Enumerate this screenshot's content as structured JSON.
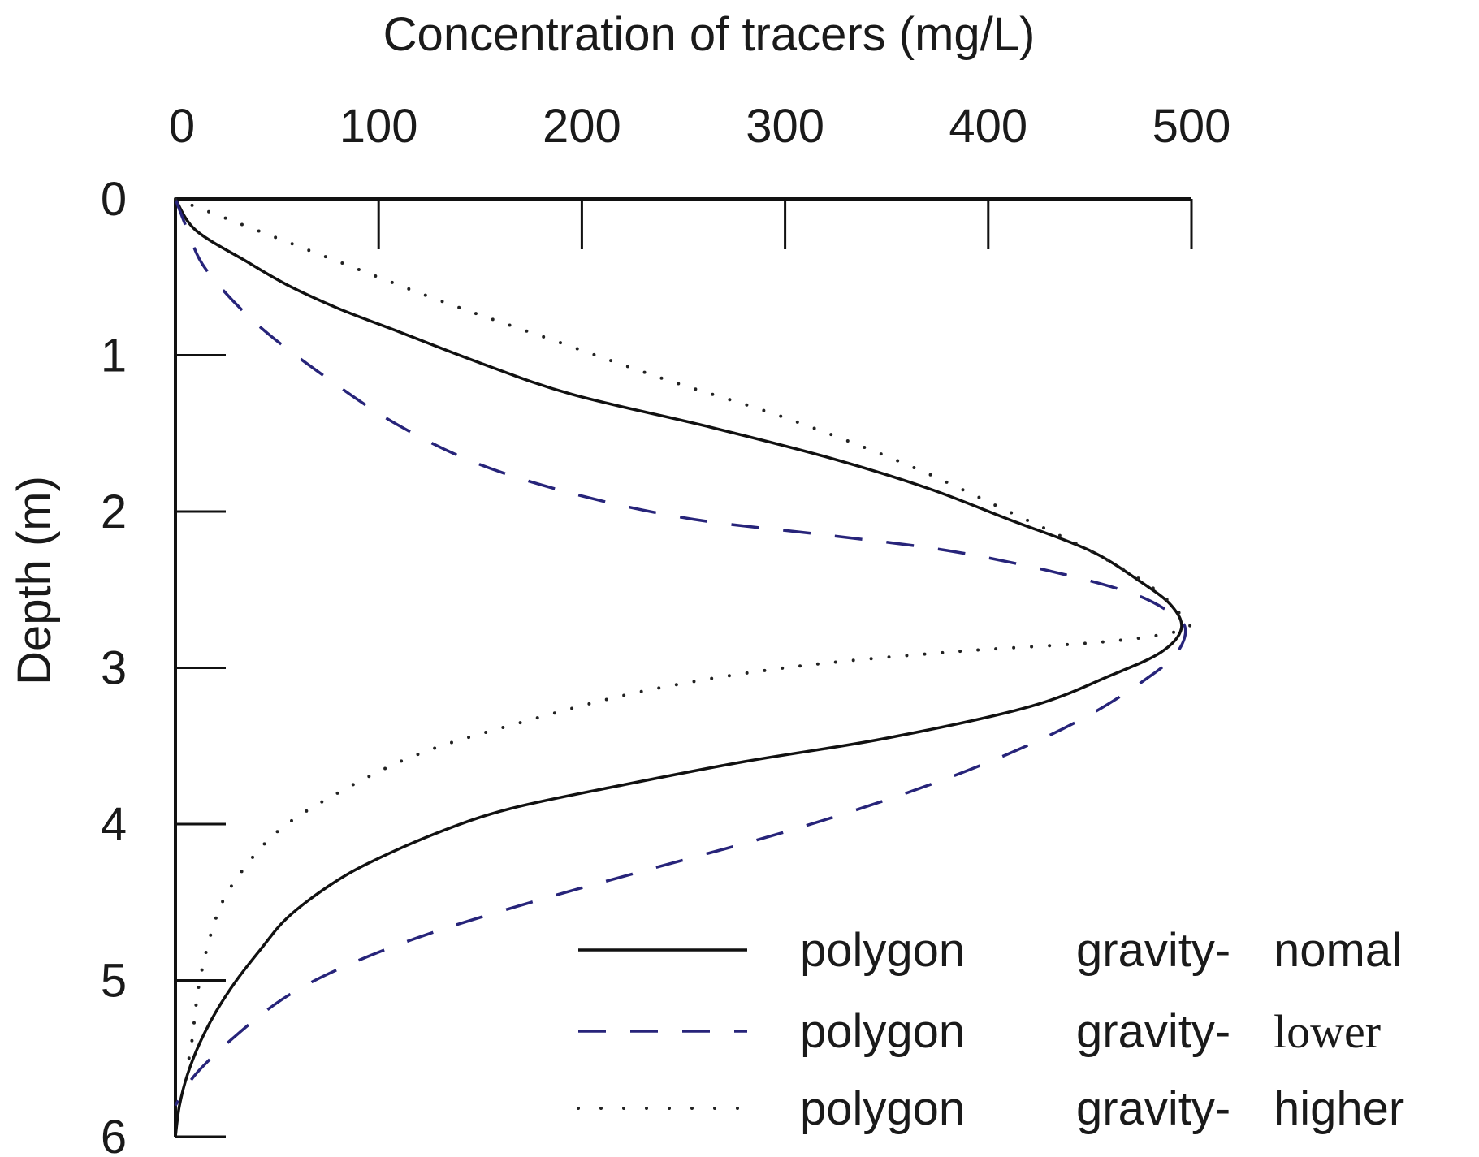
{
  "chart_data": {
    "type": "line",
    "xlabel": "Concentration of tracers (mg/L)",
    "ylabel": "Depth (m)",
    "x_axis_position": "top",
    "y_axis_inverted": true,
    "xlim": [
      0,
      500
    ],
    "ylim": [
      0,
      6
    ],
    "x_ticks": [
      "0",
      "100",
      "200",
      "300",
      "400",
      "500"
    ],
    "y_ticks": [
      "0",
      "1",
      "2",
      "3",
      "4",
      "5",
      "6"
    ],
    "grid": false,
    "legend_position": "bottom-right",
    "series": [
      {
        "name": "polygon gravity-nomal",
        "legend_parts": [
          "polygon",
          "gravity-",
          "nomal"
        ],
        "style": "solid",
        "color": "#111111",
        "points": [
          [
            0,
            0
          ],
          [
            10,
            0.2
          ],
          [
            35,
            0.4
          ],
          [
            55,
            0.55
          ],
          [
            80,
            0.7
          ],
          [
            110,
            0.85
          ],
          [
            150,
            1.05
          ],
          [
            195,
            1.25
          ],
          [
            260,
            1.45
          ],
          [
            320,
            1.65
          ],
          [
            370,
            1.85
          ],
          [
            410,
            2.05
          ],
          [
            450,
            2.25
          ],
          [
            475,
            2.45
          ],
          [
            490,
            2.6
          ],
          [
            495,
            2.75
          ],
          [
            485,
            2.9
          ],
          [
            460,
            3.05
          ],
          [
            420,
            3.25
          ],
          [
            350,
            3.45
          ],
          [
            280,
            3.6
          ],
          [
            220,
            3.75
          ],
          [
            165,
            3.9
          ],
          [
            130,
            4.05
          ],
          [
            95,
            4.25
          ],
          [
            75,
            4.4
          ],
          [
            55,
            4.6
          ],
          [
            42,
            4.8
          ],
          [
            30,
            5.0
          ],
          [
            20,
            5.2
          ],
          [
            12,
            5.4
          ],
          [
            6,
            5.6
          ],
          [
            2,
            5.8
          ],
          [
            0,
            6
          ]
        ]
      },
      {
        "name": "polygon gravity-lower",
        "legend_parts": [
          "polygon",
          "gravity-",
          "lower"
        ],
        "style": "dashed",
        "color": "#27247a",
        "points": [
          [
            0,
            0
          ],
          [
            6,
            0.2
          ],
          [
            15,
            0.45
          ],
          [
            40,
            0.8
          ],
          [
            75,
            1.15
          ],
          [
            110,
            1.45
          ],
          [
            150,
            1.7
          ],
          [
            200,
            1.9
          ],
          [
            255,
            2.05
          ],
          [
            320,
            2.15
          ],
          [
            380,
            2.25
          ],
          [
            430,
            2.38
          ],
          [
            470,
            2.52
          ],
          [
            490,
            2.65
          ],
          [
            497,
            2.75
          ],
          [
            493,
            2.9
          ],
          [
            480,
            3.05
          ],
          [
            450,
            3.3
          ],
          [
            410,
            3.55
          ],
          [
            360,
            3.8
          ],
          [
            300,
            4.05
          ],
          [
            230,
            4.3
          ],
          [
            175,
            4.5
          ],
          [
            125,
            4.7
          ],
          [
            85,
            4.9
          ],
          [
            55,
            5.1
          ],
          [
            30,
            5.35
          ],
          [
            10,
            5.6
          ],
          [
            0,
            5.8
          ]
        ]
      },
      {
        "name": "polygon gravity-higher",
        "legend_parts": [
          "polygon",
          "gravity-",
          "higher"
        ],
        "style": "dotted",
        "color": "#222222",
        "points": [
          [
            0,
            0
          ],
          [
            30,
            0.15
          ],
          [
            80,
            0.4
          ],
          [
            130,
            0.65
          ],
          [
            185,
            0.9
          ],
          [
            240,
            1.15
          ],
          [
            300,
            1.4
          ],
          [
            360,
            1.7
          ],
          [
            410,
            2.0
          ],
          [
            450,
            2.25
          ],
          [
            480,
            2.48
          ],
          [
            494,
            2.65
          ],
          [
            497,
            2.75
          ],
          [
            460,
            2.83
          ],
          [
            380,
            2.9
          ],
          [
            300,
            3.0
          ],
          [
            230,
            3.15
          ],
          [
            170,
            3.35
          ],
          [
            120,
            3.55
          ],
          [
            80,
            3.8
          ],
          [
            50,
            4.05
          ],
          [
            30,
            4.35
          ],
          [
            20,
            4.6
          ],
          [
            12,
            5.0
          ],
          [
            8,
            5.4
          ],
          [
            5,
            5.6
          ]
        ]
      }
    ]
  }
}
